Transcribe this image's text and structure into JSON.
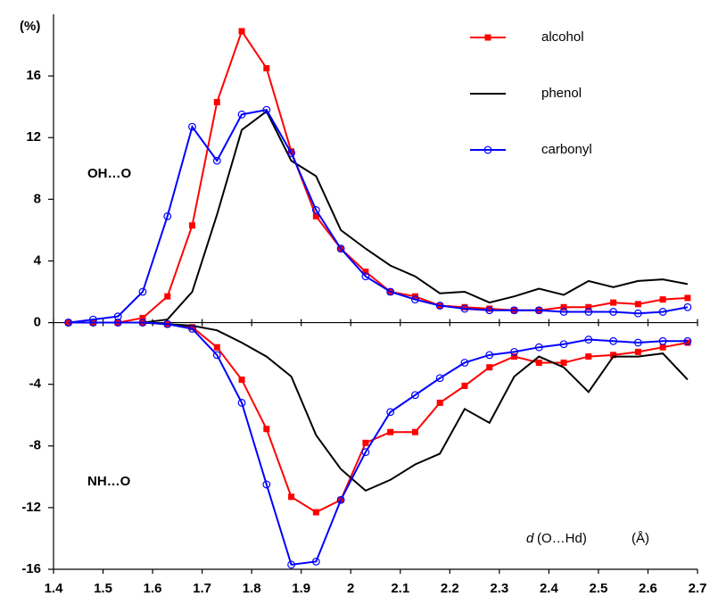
{
  "chart_data": {
    "type": "line",
    "y_label": "(%)",
    "annotations": [
      "OH…O",
      "NH…O"
    ],
    "x_label_symbol": "d",
    "x_label": "(O…Hd)",
    "x_unit": "(Å)",
    "x": [
      1.43,
      1.48,
      1.53,
      1.58,
      1.63,
      1.68,
      1.73,
      1.78,
      1.83,
      1.88,
      1.93,
      1.98,
      2.03,
      2.08,
      2.13,
      2.18,
      2.23,
      2.28,
      2.33,
      2.38,
      2.43,
      2.48,
      2.53,
      2.58,
      2.63,
      2.68
    ],
    "series": [
      {
        "name": "alcohol",
        "color": "#ff0000",
        "marker": "square",
        "values": [
          0,
          0,
          0,
          0.3,
          1.7,
          6.3,
          14.3,
          18.9,
          16.5,
          11.1,
          6.9,
          4.8,
          3.3,
          2.0,
          1.7,
          1.1,
          1.0,
          0.9,
          0.8,
          0.8,
          1.0,
          1.0,
          1.3,
          1.2,
          1.5,
          1.6
        ],
        "nh_values": [
          0,
          0,
          0,
          0,
          -0.1,
          -0.3,
          -1.6,
          -3.7,
          -6.9,
          -11.3,
          -12.3,
          -11.5,
          -7.8,
          -7.1,
          -7.1,
          -5.2,
          -4.1,
          -2.9,
          -2.2,
          -2.6,
          -2.6,
          -2.2,
          -2.1,
          -1.9,
          -1.6,
          -1.3
        ]
      },
      {
        "name": "phenol",
        "color": "#000000",
        "marker": "none",
        "values": [
          0,
          0,
          0,
          0,
          0.2,
          2.0,
          7.0,
          12.5,
          13.7,
          10.5,
          9.5,
          6.0,
          4.8,
          3.7,
          3.0,
          1.9,
          2.0,
          1.3,
          1.7,
          2.2,
          1.8,
          2.7,
          2.3,
          2.7,
          2.8,
          2.5
        ],
        "nh_values": [
          0,
          0,
          0,
          0,
          -0.1,
          -0.2,
          -0.5,
          -1.3,
          -2.2,
          -3.5,
          -7.3,
          -9.5,
          -10.9,
          -10.2,
          -9.2,
          -8.5,
          -5.6,
          -6.5,
          -3.5,
          -2.2,
          -2.9,
          -4.5,
          -2.2,
          -2.2,
          -2.0,
          -3.7
        ]
      },
      {
        "name": "carbonyl",
        "color": "#0000ff",
        "marker": "circle",
        "values": [
          0,
          0.2,
          0.4,
          2.0,
          6.9,
          12.7,
          10.5,
          13.5,
          13.8,
          11.0,
          7.3,
          4.8,
          3.0,
          2.0,
          1.5,
          1.1,
          0.9,
          0.8,
          0.8,
          0.8,
          0.7,
          0.7,
          0.7,
          0.6,
          0.7,
          1.0
        ],
        "nh_values": [
          0,
          0,
          0,
          0,
          -0.1,
          -0.4,
          -2.1,
          -5.2,
          -10.5,
          -15.7,
          -15.5,
          -11.5,
          -8.4,
          -5.8,
          -4.7,
          -3.6,
          -2.6,
          -2.1,
          -1.9,
          -1.6,
          -1.4,
          -1.1,
          -1.2,
          -1.3,
          -1.2,
          -1.2
        ]
      }
    ],
    "xlim": [
      1.4,
      2.7
    ],
    "xticks": [
      1.4,
      1.5,
      1.6,
      1.7,
      1.8,
      1.9,
      2,
      2.1,
      2.2,
      2.3,
      2.4,
      2.5,
      2.6,
      2.7
    ],
    "ylim": [
      -16,
      20
    ],
    "yticks": [
      -16,
      -12,
      -8,
      -4,
      0,
      4,
      8,
      12,
      16
    ],
    "grid": false,
    "legend": "top-right"
  }
}
